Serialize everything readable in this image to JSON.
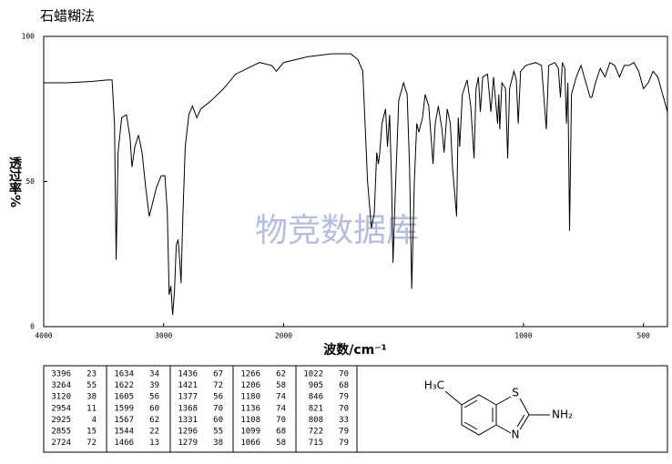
{
  "chart_data": {
    "type": "line",
    "title": "石蜡糊法",
    "watermark": "物竞数据库",
    "xlabel": "波数/cm⁻¹",
    "ylabel": "透过率%",
    "xlim": [
      4000,
      400
    ],
    "xticks": [
      4000,
      3000,
      2000,
      1000,
      500
    ],
    "x_expansion_below": 2000,
    "x_expansion_factor": 2,
    "ylim": [
      0,
      100
    ],
    "yticks": [
      0,
      50,
      100
    ],
    "color": "#000000",
    "grid": false,
    "x": [
      4000,
      3800,
      3600,
      3470,
      3430,
      3410,
      3396,
      3380,
      3350,
      3310,
      3280,
      3264,
      3240,
      3210,
      3180,
      3150,
      3120,
      3090,
      3060,
      3020,
      2990,
      2970,
      2954,
      2940,
      2925,
      2910,
      2895,
      2880,
      2868,
      2855,
      2840,
      2820,
      2790,
      2760,
      2724,
      2690,
      2600,
      2500,
      2400,
      2300,
      2200,
      2100,
      2060,
      2000,
      1900,
      1800,
      1720,
      1690,
      1670,
      1650,
      1634,
      1622,
      1612,
      1605,
      1599,
      1590,
      1575,
      1567,
      1558,
      1550,
      1544,
      1535,
      1520,
      1500,
      1485,
      1475,
      1466,
      1455,
      1445,
      1436,
      1421,
      1410,
      1395,
      1377,
      1368,
      1355,
      1340,
      1331,
      1318,
      1305,
      1296,
      1279,
      1272,
      1266,
      1255,
      1235,
      1220,
      1206,
      1198,
      1188,
      1180,
      1170,
      1150,
      1136,
      1125,
      1108,
      1103,
      1099,
      1090,
      1075,
      1066,
      1058,
      1040,
      1030,
      1022,
      1012,
      990,
      950,
      925,
      905,
      895,
      870,
      855,
      846,
      838,
      828,
      821,
      815,
      808,
      800,
      780,
      760,
      740,
      722,
      715,
      700,
      680,
      660,
      640,
      620,
      600,
      580,
      560,
      540,
      520,
      500,
      480,
      460,
      440,
      420,
      400
    ],
    "values": [
      84,
      84,
      84.5,
      85,
      85,
      70,
      23,
      60,
      72,
      73,
      65,
      55,
      62,
      66,
      60,
      48,
      38,
      43,
      48,
      52,
      52,
      40,
      11,
      14,
      4,
      12,
      28,
      30,
      24,
      15,
      38,
      62,
      73,
      76,
      72,
      75,
      78,
      82,
      87,
      89,
      91,
      90,
      88,
      91,
      93,
      94,
      94,
      92,
      88,
      50,
      34,
      39,
      60,
      56,
      60,
      70,
      75,
      62,
      73,
      50,
      22,
      45,
      78,
      84,
      80,
      55,
      13,
      50,
      70,
      67,
      72,
      80,
      76,
      56,
      70,
      76,
      68,
      60,
      75,
      70,
      55,
      38,
      72,
      62,
      80,
      85,
      76,
      58,
      82,
      86,
      74,
      86,
      87,
      74,
      86,
      70,
      80,
      68,
      84,
      82,
      58,
      82,
      88,
      85,
      70,
      88,
      90,
      91,
      90,
      68,
      90,
      91,
      89,
      79,
      91,
      89,
      70,
      84,
      33,
      80,
      86,
      90,
      84,
      79,
      79,
      84,
      89,
      86,
      91,
      90,
      86,
      90,
      90,
      91,
      88,
      82,
      84,
      88,
      86,
      80,
      74
    ]
  },
  "peak_table": [
    [
      [
        3396,
        23
      ],
      [
        3264,
        55
      ],
      [
        3120,
        38
      ],
      [
        2954,
        11
      ],
      [
        2925,
        4
      ],
      [
        2855,
        15
      ],
      [
        2724,
        72
      ]
    ],
    [
      [
        1634,
        34
      ],
      [
        1622,
        39
      ],
      [
        1605,
        56
      ],
      [
        1599,
        60
      ],
      [
        1567,
        62
      ],
      [
        1544,
        22
      ],
      [
        1466,
        13
      ]
    ],
    [
      [
        1436,
        67
      ],
      [
        1421,
        72
      ],
      [
        1377,
        56
      ],
      [
        1368,
        70
      ],
      [
        1331,
        60
      ],
      [
        1296,
        55
      ],
      [
        1279,
        38
      ]
    ],
    [
      [
        1266,
        62
      ],
      [
        1206,
        58
      ],
      [
        1180,
        74
      ],
      [
        1136,
        74
      ],
      [
        1108,
        70
      ],
      [
        1099,
        68
      ],
      [
        1066,
        58
      ]
    ],
    [
      [
        1022,
        70
      ],
      [
        905,
        68
      ],
      [
        846,
        79
      ],
      [
        821,
        70
      ],
      [
        808,
        33
      ],
      [
        722,
        79
      ],
      [
        715,
        79
      ]
    ]
  ],
  "structure": {
    "methyl": "H₃C",
    "sulfur": "S",
    "nitrogen": "N",
    "amine": "NH₂"
  }
}
